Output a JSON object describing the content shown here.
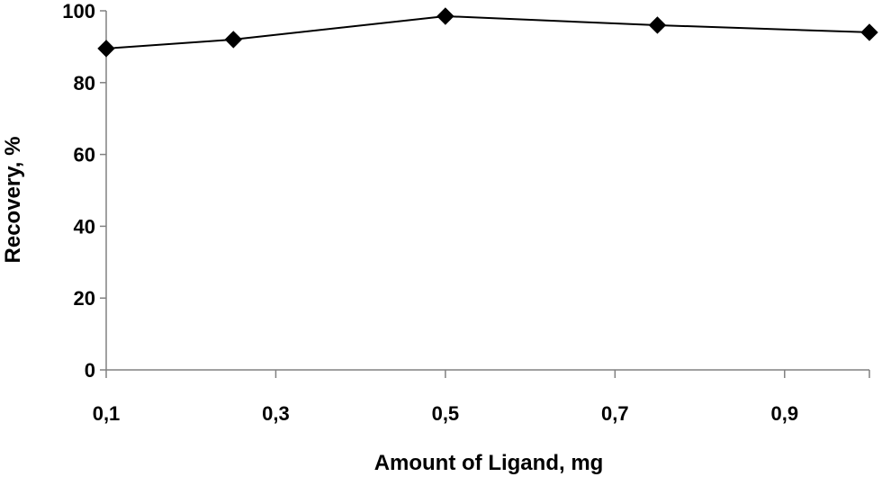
{
  "chart_data": {
    "type": "line",
    "title": "",
    "xlabel": "Amount of Ligand, mg",
    "ylabel": "Recovery, %",
    "x": [
      0.1,
      0.25,
      0.5,
      0.75,
      1.0
    ],
    "series": [
      {
        "values": [
          89.5,
          92,
          98.5,
          96,
          94
        ],
        "color": "#000000",
        "marker": "diamond"
      }
    ],
    "xlim": [
      0.1,
      1.0
    ],
    "ylim": [
      0,
      100
    ],
    "x_ticks": [
      0.1,
      0.3,
      0.5,
      0.7,
      0.9
    ],
    "x_tick_labels": [
      "0,1",
      "0,3",
      "0,5",
      "0,7",
      "0,9"
    ],
    "y_ticks": [
      0,
      20,
      40,
      60,
      80,
      100
    ],
    "y_tick_labels": [
      "0",
      "20",
      "40",
      "60",
      "80",
      "100"
    ],
    "grid": false,
    "legend": "none"
  }
}
